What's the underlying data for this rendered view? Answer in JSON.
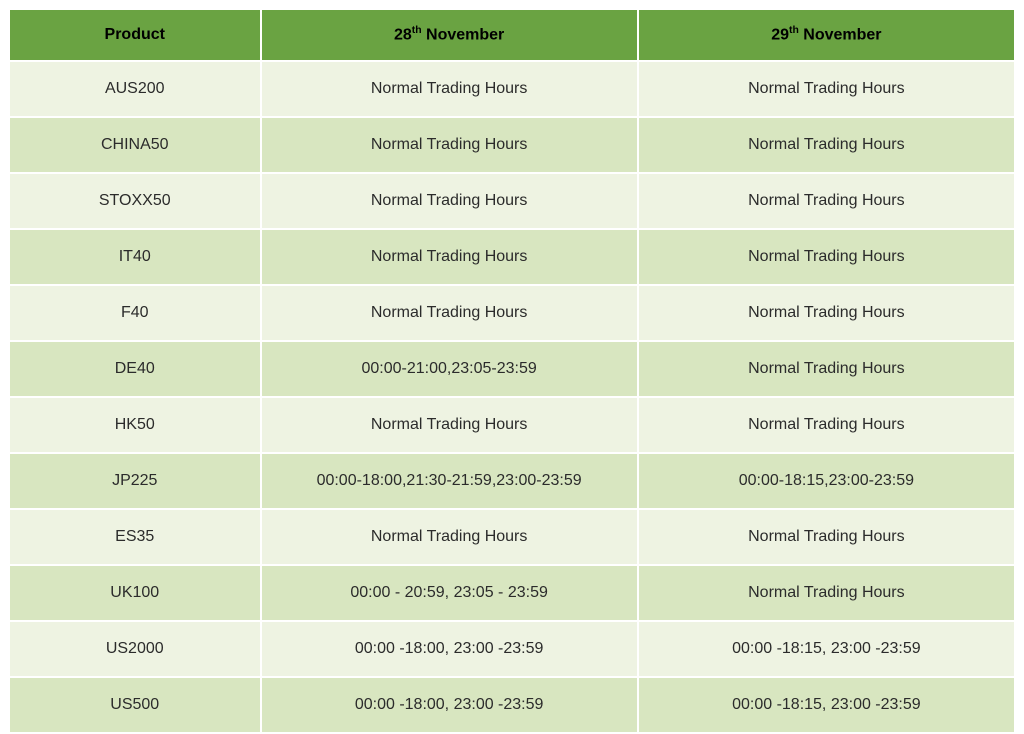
{
  "table": {
    "type": "table",
    "background_color": "#ffffff",
    "header_bg": "#6aa342",
    "header_text_color": "#000000",
    "row_odd_bg": "#eef3e2",
    "row_even_bg": "#d8e6c0",
    "border_color": "#ffffff",
    "font_family": "Segoe UI, Arial, sans-serif",
    "header_font_weight": 700,
    "body_font_weight": 400,
    "font_size_pt": 12,
    "column_widths_pct": [
      25,
      37.5,
      37.5
    ],
    "columns": [
      {
        "label": "Product"
      },
      {
        "label_html": "28<sup>th</sup> November"
      },
      {
        "label_html": "29<sup>th</sup> November"
      }
    ],
    "rows": [
      {
        "product": "AUS200",
        "c28": "Normal Trading Hours",
        "c29": "Normal Trading Hours"
      },
      {
        "product": "CHINA50",
        "c28": "Normal Trading Hours",
        "c29": "Normal Trading Hours"
      },
      {
        "product": "STOXX50",
        "c28": "Normal Trading Hours",
        "c29": "Normal Trading Hours"
      },
      {
        "product": "IT40",
        "c28": "Normal Trading Hours",
        "c29": "Normal Trading Hours"
      },
      {
        "product": "F40",
        "c28": "Normal Trading Hours",
        "c29": "Normal Trading Hours"
      },
      {
        "product": "DE40",
        "c28": "00:00-21:00,23:05-23:59",
        "c29": "Normal Trading Hours"
      },
      {
        "product": "HK50",
        "c28": "Normal Trading Hours",
        "c29": "Normal Trading Hours"
      },
      {
        "product": "JP225",
        "c28": "00:00-18:00,21:30-21:59,23:00-23:59",
        "c29": "00:00-18:15,23:00-23:59"
      },
      {
        "product": "ES35",
        "c28": "Normal Trading Hours",
        "c29": "Normal Trading Hours"
      },
      {
        "product": "UK100",
        "c28": "00:00 - 20:59, 23:05 - 23:59",
        "c29": "Normal Trading Hours"
      },
      {
        "product": "US2000",
        "c28": "00:00 -18:00, 23:00 -23:59",
        "c29": "00:00 -18:15, 23:00 -23:59"
      },
      {
        "product": "US500",
        "c28": "00:00 -18:00, 23:00 -23:59",
        "c29": "00:00 -18:15, 23:00 -23:59"
      }
    ]
  }
}
